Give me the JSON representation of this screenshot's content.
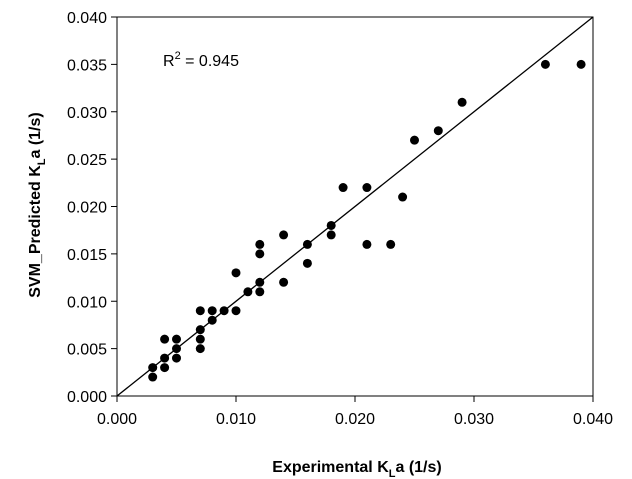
{
  "chart_data": {
    "type": "scatter",
    "xlabel": "Experimental K",
    "xlabel_sub": "L",
    "xlabel_suffix": "a (1/s)",
    "ylabel": "SVM_Predicted K",
    "ylabel_sub": "L",
    "ylabel_suffix": "a (1/s)",
    "annotation": {
      "prefix": "R",
      "sup": "2",
      "suffix": " = 0.945"
    },
    "xlim": [
      0,
      0.04
    ],
    "ylim": [
      0,
      0.04
    ],
    "xticks": [
      "0.000",
      "0.010",
      "0.020",
      "0.030",
      "0.040"
    ],
    "yticks": [
      "0.000",
      "0.005",
      "0.010",
      "0.015",
      "0.020",
      "0.025",
      "0.030",
      "0.035",
      "0.040"
    ],
    "xtick_values": [
      0,
      0.01,
      0.02,
      0.03,
      0.04
    ],
    "ytick_values": [
      0,
      0.005,
      0.01,
      0.015,
      0.02,
      0.025,
      0.03,
      0.035,
      0.04
    ],
    "line": {
      "from": [
        0,
        0
      ],
      "to": [
        0.04,
        0.04
      ]
    },
    "grid": false,
    "points": [
      [
        0.003,
        0.002
      ],
      [
        0.003,
        0.003
      ],
      [
        0.004,
        0.003
      ],
      [
        0.004,
        0.004
      ],
      [
        0.004,
        0.006
      ],
      [
        0.005,
        0.004
      ],
      [
        0.005,
        0.005
      ],
      [
        0.005,
        0.006
      ],
      [
        0.007,
        0.005
      ],
      [
        0.007,
        0.006
      ],
      [
        0.007,
        0.007
      ],
      [
        0.007,
        0.009
      ],
      [
        0.008,
        0.008
      ],
      [
        0.008,
        0.009
      ],
      [
        0.009,
        0.009
      ],
      [
        0.01,
        0.009
      ],
      [
        0.01,
        0.013
      ],
      [
        0.011,
        0.011
      ],
      [
        0.012,
        0.011
      ],
      [
        0.012,
        0.012
      ],
      [
        0.012,
        0.015
      ],
      [
        0.012,
        0.016
      ],
      [
        0.014,
        0.012
      ],
      [
        0.014,
        0.017
      ],
      [
        0.016,
        0.014
      ],
      [
        0.016,
        0.016
      ],
      [
        0.018,
        0.017
      ],
      [
        0.018,
        0.018
      ],
      [
        0.019,
        0.022
      ],
      [
        0.021,
        0.016
      ],
      [
        0.021,
        0.022
      ],
      [
        0.023,
        0.016
      ],
      [
        0.024,
        0.021
      ],
      [
        0.025,
        0.027
      ],
      [
        0.027,
        0.028
      ],
      [
        0.029,
        0.031
      ],
      [
        0.036,
        0.035
      ],
      [
        0.039,
        0.035
      ]
    ]
  }
}
